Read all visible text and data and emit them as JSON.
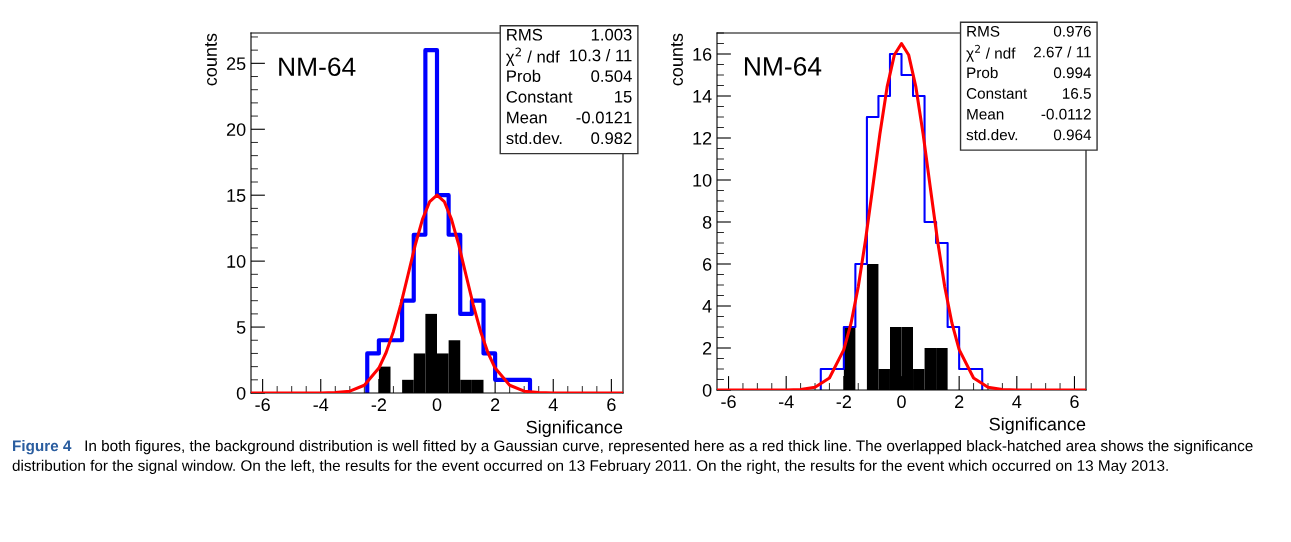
{
  "chart_data": [
    {
      "type": "histogram",
      "xlabel": "Significance",
      "ylabel": "counts",
      "xlim": [
        -6.4,
        6.4
      ],
      "xticks": [
        -6,
        -4,
        -2,
        0,
        2,
        4,
        6
      ],
      "ylim": [
        0,
        27.3
      ],
      "yticks": [
        0,
        5,
        10,
        15,
        20,
        25
      ],
      "grid": false,
      "legend": false,
      "bins": [
        -6.4,
        -6.0,
        -5.6,
        -5.2,
        -4.8,
        -4.4,
        -4.0,
        -3.6,
        -3.2,
        -2.8,
        -2.4,
        -2.0,
        -1.6,
        -1.2,
        -0.8,
        -0.4,
        0.0,
        0.4,
        0.8,
        1.2,
        1.6,
        2.0,
        2.4,
        2.8,
        3.2,
        3.6,
        4.0,
        4.4,
        4.8,
        5.2,
        5.6,
        6.0,
        6.4
      ],
      "series": [
        {
          "type": "step",
          "color": "#0000ff",
          "x": [
            -2.4,
            -2.4,
            -2.0,
            -1.6,
            -1.2,
            -0.8,
            -0.4,
            0.0,
            0.4,
            0.8,
            1.2,
            1.6,
            2.0,
            2.4,
            2.8,
            3.2
          ],
          "values": [
            0,
            3,
            4,
            4,
            7,
            12,
            26,
            15,
            12,
            6,
            7,
            3,
            1,
            1,
            1,
            0
          ]
        },
        {
          "type": "histogram",
          "color": "#000000",
          "values": [
            0,
            0,
            0,
            0,
            0,
            0,
            0,
            0,
            0,
            0,
            0,
            2,
            0,
            1,
            3,
            6,
            3,
            4,
            1,
            1,
            0,
            0,
            0,
            0,
            0,
            0,
            0,
            0,
            0,
            0,
            0,
            0
          ]
        },
        {
          "type": "line",
          "color": "#ff0000",
          "x": [
            -6.4,
            -4,
            -3.5,
            -3,
            -2.5,
            -2,
            -1.75,
            -1.5,
            -1.25,
            -1,
            -0.75,
            -0.5,
            -0.25,
            0,
            0.25,
            0.5,
            0.75,
            1,
            1.25,
            1.5,
            1.75,
            2,
            2.5,
            3,
            3.5,
            4,
            6.4
          ],
          "values": [
            0,
            0,
            0.03,
            0.14,
            0.59,
            1.89,
            3.07,
            4.67,
            6.67,
            8.93,
            11.21,
            13.17,
            14.52,
            15,
            14.52,
            13.17,
            11.21,
            8.93,
            6.67,
            4.67,
            3.07,
            1.89,
            0.59,
            0.14,
            0.03,
            0,
            0
          ]
        }
      ],
      "annotations": [
        "NM-64",
        "RMS",
        "1.003",
        "χ$^{2}$ / ndf",
        "10.3 / 11",
        "Prob",
        "0.504",
        "Constant",
        "15",
        "Mean",
        "-0.0121",
        "std.dev.",
        "0.982",
        "Figure 4",
        "In both figures, the background distribution is well fitted by a Gaussian curve, represented here as a red thick line. The overlapped black-hatched area shows the significance distribution for the signal window. On the left, the results for the event occurred on 13 February 2011. On the right, the results for the event which occurred on 13 May 2013."
      ]
    },
    {
      "type": "histogram",
      "xlabel": "Significance",
      "ylabel": "counts",
      "xlim": [
        -6.4,
        6.4
      ],
      "xticks": [
        -6,
        -4,
        -2,
        0,
        2,
        4,
        6
      ],
      "ylim": [
        0,
        17
      ],
      "yticks": [
        0,
        2,
        4,
        6,
        8,
        10,
        12,
        14,
        16
      ],
      "grid": false,
      "legend": false,
      "bins": [
        -6.4,
        -6.0,
        -5.6,
        -5.2,
        -4.8,
        -4.4,
        -4.0,
        -3.6,
        -3.2,
        -2.8,
        -2.4,
        -2.0,
        -1.6,
        -1.2,
        -0.8,
        -0.4,
        0.0,
        0.4,
        0.8,
        1.2,
        1.6,
        2.0,
        2.4,
        2.8,
        3.2,
        3.6,
        4.0,
        4.4,
        4.8,
        5.2,
        5.6,
        6.0,
        6.4
      ],
      "series": [
        {
          "type": "step",
          "color": "#0000ff",
          "x": [
            -2.8,
            -2.8,
            -2.4,
            -2.0,
            -1.6,
            -1.2,
            -0.8,
            -0.4,
            0.0,
            0.4,
            0.8,
            1.2,
            1.6,
            2.0,
            2.4,
            2.8
          ],
          "values": [
            0,
            1,
            1,
            3,
            6,
            13,
            14,
            16,
            15,
            14,
            8,
            7,
            3,
            1,
            1,
            0
          ]
        },
        {
          "type": "histogram",
          "color": "#000000",
          "values": [
            0,
            0,
            0,
            0,
            0,
            0,
            0,
            0,
            0,
            0,
            0,
            3,
            0,
            6,
            1,
            3,
            3,
            1,
            2,
            2,
            0,
            0,
            0,
            0,
            0,
            0,
            0,
            0,
            0,
            0,
            0,
            0
          ]
        },
        {
          "type": "line",
          "color": "#ff0000",
          "x": [
            -6.4,
            -4,
            -3.5,
            -3,
            -2.5,
            -2,
            -1.75,
            -1.5,
            -1.25,
            -1,
            -0.75,
            -0.5,
            -0.25,
            0,
            0.25,
            0.5,
            0.75,
            1,
            1.25,
            1.5,
            1.75,
            2,
            2.5,
            3,
            3.5,
            4,
            6.4
          ],
          "values": [
            0,
            0,
            0.02,
            0.13,
            0.57,
            1.92,
            3.18,
            4.92,
            7.12,
            9.63,
            12.19,
            14.42,
            15.95,
            16.5,
            15.95,
            14.42,
            12.19,
            9.63,
            7.12,
            4.92,
            3.18,
            1.92,
            0.57,
            0.13,
            0.02,
            0,
            0
          ]
        }
      ],
      "annotations": [
        "NM-64",
        "RMS",
        "0.976",
        "χ$^{2}$ / ndf",
        "2.67 / 11",
        "Prob",
        "0.994",
        "Constant",
        "16.5",
        "Mean",
        "-0.0112",
        "std.dev.",
        "0.964"
      ]
    }
  ]
}
